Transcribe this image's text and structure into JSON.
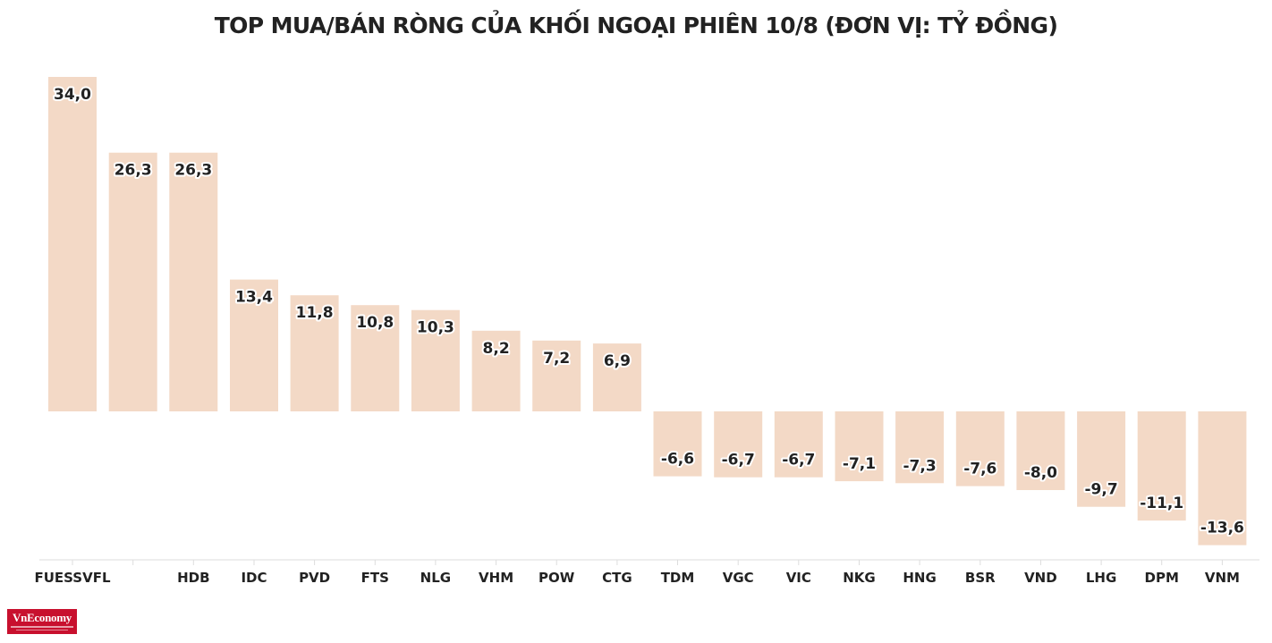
{
  "chart_data": {
    "type": "bar",
    "title": "TOP MUA/BÁN RÒNG CỦA KHỐI NGOẠI PHIÊN 10/8 (ĐƠN VỊ: TỶ ĐỒNG)",
    "xlabel": "",
    "ylabel": "",
    "categories": [
      "FUESSVFL",
      "",
      "HDB",
      "IDC",
      "PVD",
      "FTS",
      "NLG",
      "VHM",
      "POW",
      "CTG",
      "TDM",
      "VGC",
      "VIC",
      "NKG",
      "HNG",
      "BSR",
      "VND",
      "LHG",
      "DPM",
      "VNM"
    ],
    "values": [
      34.0,
      26.3,
      26.3,
      13.4,
      11.8,
      10.8,
      10.3,
      8.2,
      7.2,
      6.9,
      -6.6,
      -6.7,
      -6.7,
      -7.1,
      -7.3,
      -7.6,
      -8.0,
      -9.7,
      -11.1,
      -13.6
    ],
    "value_labels": [
      "34,0",
      "26,3",
      "26,3",
      "13,4",
      "11,8",
      "10,8",
      "10,3",
      "8,2",
      "7,2",
      "6,9",
      "-6,6",
      "-6,7",
      "-6,7",
      "-7,1",
      "-7,3",
      "-7,6",
      "-8,0",
      "-9,7",
      "-11,1",
      "-13,6"
    ],
    "ylim": [
      -15,
      34
    ],
    "grid": false,
    "bar_color": "#f3d9c6",
    "axis_color": "#dddddd"
  },
  "logo": {
    "name": "VnEconomy"
  }
}
